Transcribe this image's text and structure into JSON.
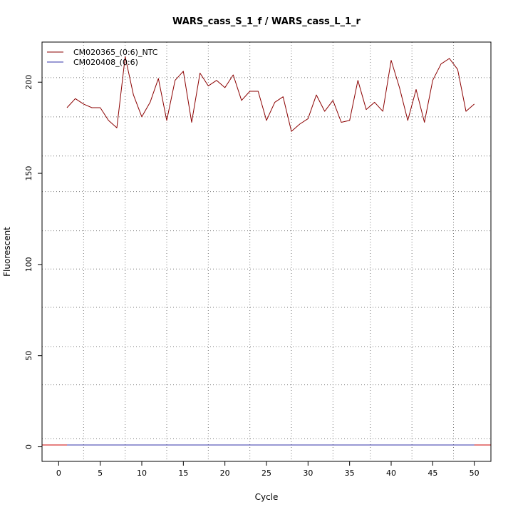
{
  "chart_data": {
    "type": "line",
    "title": "WARS_cass_S_1_f / WARS_cass_L_1_r",
    "xlabel": "Cycle",
    "ylabel": "Fluorescent",
    "xlim": [
      -2,
      52
    ],
    "ylim": [
      -8,
      222
    ],
    "x_ticks": [
      0,
      5,
      10,
      15,
      20,
      25,
      30,
      35,
      40,
      45,
      50
    ],
    "y_ticks": [
      0,
      50,
      100,
      150,
      200
    ],
    "x_grid": [
      3,
      8,
      13,
      18,
      23,
      28,
      33,
      37.5,
      42.5,
      47.5
    ],
    "y_grid": [
      4.5,
      34,
      55,
      76.5,
      97.5,
      118.5,
      140,
      159.5,
      181,
      202.5
    ],
    "grid": true,
    "legend_position": "top-left",
    "series": [
      {
        "name": "CM020365_(0:6)_NTC",
        "color": "#8b0000",
        "x": [
          1,
          2,
          3,
          4,
          5,
          6,
          7,
          8,
          9,
          10,
          11,
          12,
          13,
          14,
          15,
          16,
          17,
          18,
          19,
          20,
          21,
          22,
          23,
          24,
          25,
          26,
          27,
          28,
          29,
          30,
          31,
          32,
          33,
          34,
          35,
          36,
          37,
          38,
          39,
          40,
          41,
          42,
          43,
          44,
          45,
          46,
          47,
          48,
          49,
          50
        ],
        "values": [
          186,
          191,
          188,
          186,
          186,
          179,
          175,
          214,
          193,
          181,
          189,
          202,
          179,
          201,
          206,
          178,
          205,
          198,
          201,
          197,
          204,
          190,
          195,
          195,
          179,
          189,
          192,
          173,
          177,
          180,
          193,
          184,
          190,
          178,
          179,
          201,
          185,
          189,
          184,
          212,
          197,
          179,
          196,
          178,
          201,
          210,
          213,
          207,
          184,
          188
        ]
      },
      {
        "name": "CM020408_(0:6)",
        "color": "#3333aa",
        "x": [
          1,
          50
        ],
        "values": [
          1,
          1
        ]
      }
    ],
    "baseline": {
      "color": "#cc0000",
      "value": 1
    }
  }
}
